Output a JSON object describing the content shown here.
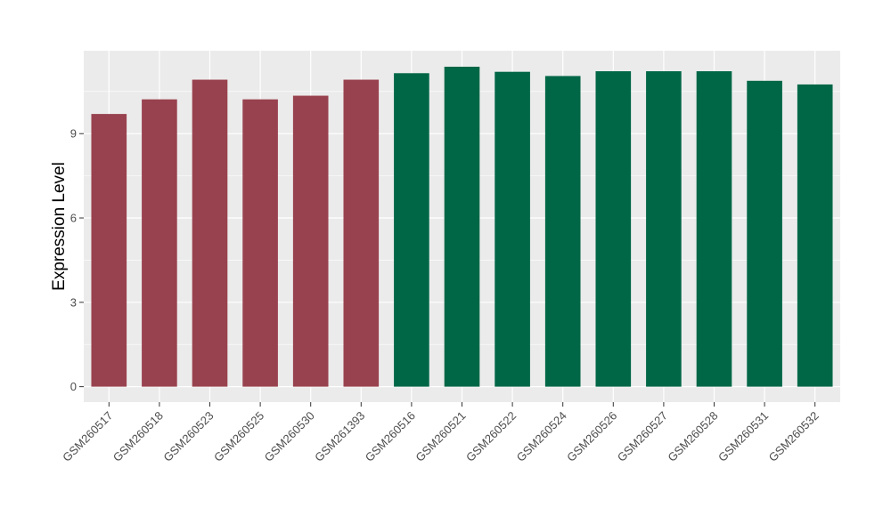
{
  "chart_data": {
    "type": "bar",
    "title": "",
    "xlabel": "",
    "ylabel": "Expression Level",
    "ylim": [
      -0.55,
      11.95
    ],
    "yticks": [
      0,
      3,
      6,
      9
    ],
    "grid": true,
    "legend": "none",
    "categories": [
      "GSM260517",
      "GSM260518",
      "GSM260523",
      "GSM260525",
      "GSM260530",
      "GSM261393",
      "GSM260516",
      "GSM260521",
      "GSM260522",
      "GSM260524",
      "GSM260526",
      "GSM260527",
      "GSM260528",
      "GSM260531",
      "GSM260532"
    ],
    "values": [
      9.7,
      10.22,
      10.92,
      10.22,
      10.35,
      10.92,
      11.15,
      11.38,
      11.2,
      11.05,
      11.22,
      11.22,
      11.22,
      10.88,
      10.75
    ],
    "groups": [
      "1",
      "1",
      "1",
      "1",
      "1",
      "1",
      "2",
      "2",
      "2",
      "2",
      "2",
      "2",
      "2",
      "2",
      "2"
    ],
    "group_colors": {
      "1": "#99424f",
      "2": "#006746"
    },
    "panel_color": "#ebebeb",
    "grid_color": "#ffffff"
  }
}
